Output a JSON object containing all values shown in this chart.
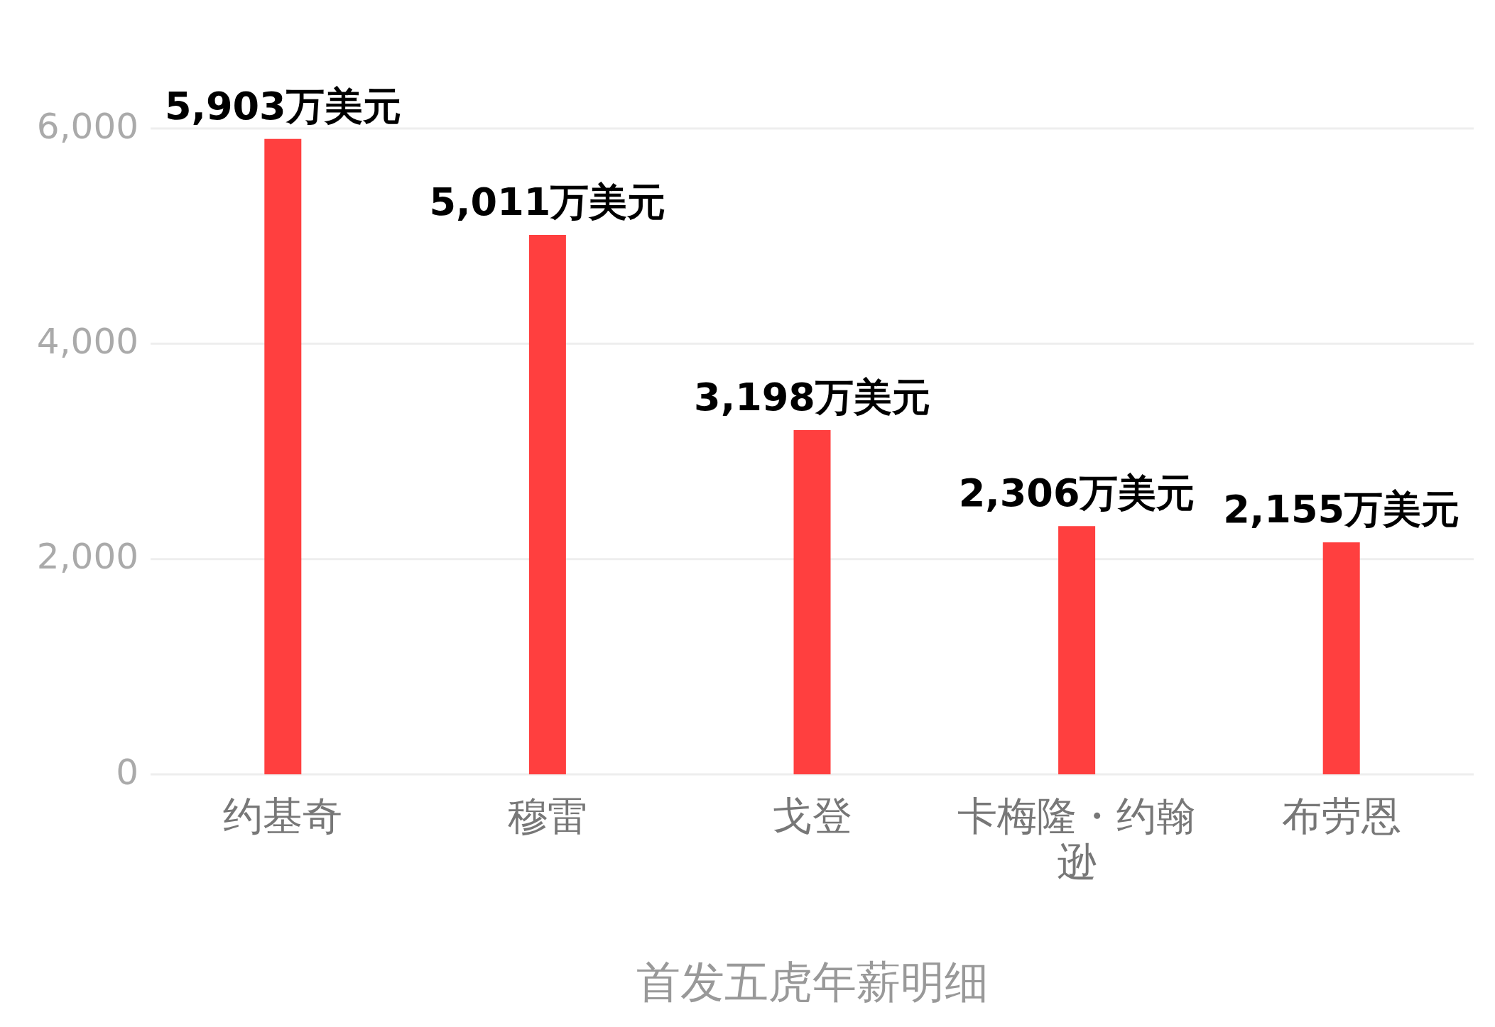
{
  "chart_data": {
    "type": "bar",
    "title": "首发五虎年薪明细",
    "categories": [
      "约基奇",
      "穆雷",
      "戈登",
      "卡梅隆・约翰逊",
      "布劳恩"
    ],
    "values": [
      5903,
      5011,
      3198,
      2306,
      2155
    ],
    "value_labels": [
      "5,903万美元",
      "5,011万美元",
      "3,198万美元",
      "2,306万美元",
      "2,155万美元"
    ],
    "color": "#ff3f3f",
    "ylim": [
      0,
      6000
    ],
    "yticks": [
      0,
      {
        "value": 2000,
        "label": "2,000"
      },
      {
        "value": 4000,
        "label": "4,000"
      },
      {
        "value": 6000,
        "label": "6,000"
      }
    ],
    "grid": "y"
  }
}
